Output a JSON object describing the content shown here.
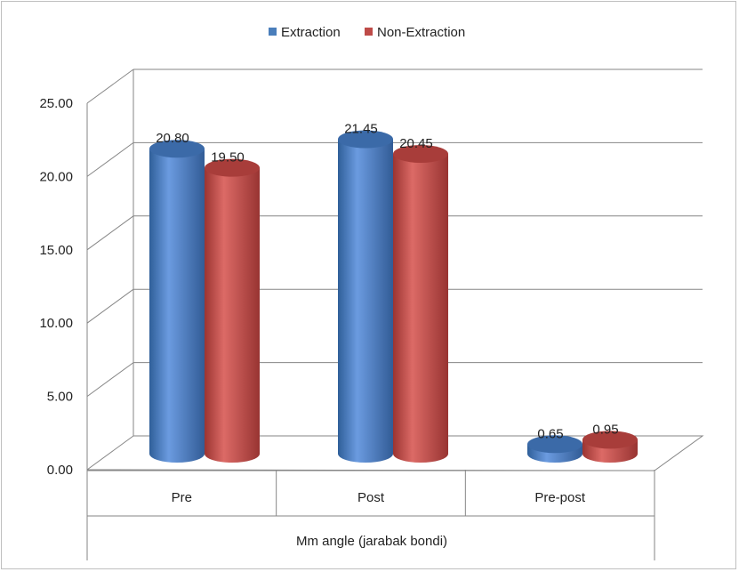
{
  "chart_data": {
    "type": "bar",
    "title": "",
    "xlabel": "Mm angle (jarabak bondi)",
    "ylabel": "",
    "categories": [
      "Pre",
      "Post",
      "Pre-post"
    ],
    "series": [
      {
        "name": "Extraction",
        "values": [
          20.8,
          21.45,
          0.65
        ],
        "labels": [
          "20.80",
          "21.45",
          "0.65"
        ],
        "color": "#4a7ebb"
      },
      {
        "name": "Non-Extraction",
        "values": [
          19.5,
          20.45,
          0.95
        ],
        "labels": [
          "19.50",
          "20.45",
          "0.95"
        ],
        "color": "#be4b48"
      }
    ],
    "ylim": [
      0,
      25
    ],
    "yticks": [
      "0.00",
      "5.00",
      "10.00",
      "15.00",
      "20.00",
      "25.00"
    ],
    "grid": true,
    "legend": "top-center",
    "style": "3d-cylinder"
  }
}
